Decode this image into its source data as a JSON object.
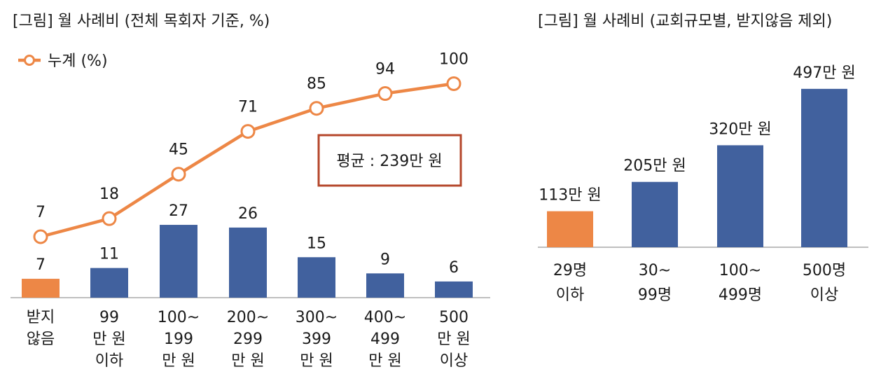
{
  "chart_data": [
    {
      "type": "bar+line",
      "title": "[그림] 월 사례비 (전체 목회자 기준, %)",
      "legend": {
        "position": "top-left",
        "label": "누계 (%)"
      },
      "categories": [
        [
          "받지",
          "않음"
        ],
        [
          "99",
          "만 원",
          "이하"
        ],
        [
          "100~",
          "199",
          "만 원"
        ],
        [
          "200~",
          "299",
          "만 원"
        ],
        [
          "300~",
          "399",
          "만 원"
        ],
        [
          "400~",
          "499",
          "만 원"
        ],
        [
          "500",
          "만 원",
          "이상"
        ]
      ],
      "series": [
        {
          "type": "bar",
          "values": [
            7,
            11,
            27,
            26,
            15,
            9,
            6
          ]
        },
        {
          "type": "line",
          "name": "누계 (%)",
          "values": [
            7,
            18,
            45,
            71,
            85,
            94,
            100
          ]
        }
      ],
      "annotation": "평균 : 239만 원",
      "colors": {
        "highlight": "#ED8746",
        "bar": "#41619E",
        "line": "#ED8746",
        "annotation_border": "#B5472B",
        "axis": "#999999"
      }
    },
    {
      "type": "bar",
      "title": "[그림] 월 사례비 (교회규모별, 받지않음 제외)",
      "categories": [
        [
          "29명",
          "이하"
        ],
        [
          "30~",
          "99명"
        ],
        [
          "100~",
          "499명"
        ],
        [
          "500명",
          "이상"
        ]
      ],
      "values": [
        113,
        205,
        320,
        497
      ],
      "value_labels": [
        "113만 원",
        "205만 원",
        "320만 원",
        "497만 원"
      ],
      "colors": {
        "highlight": "#ED8746",
        "bar": "#41619E",
        "axis": "#999999"
      }
    }
  ]
}
